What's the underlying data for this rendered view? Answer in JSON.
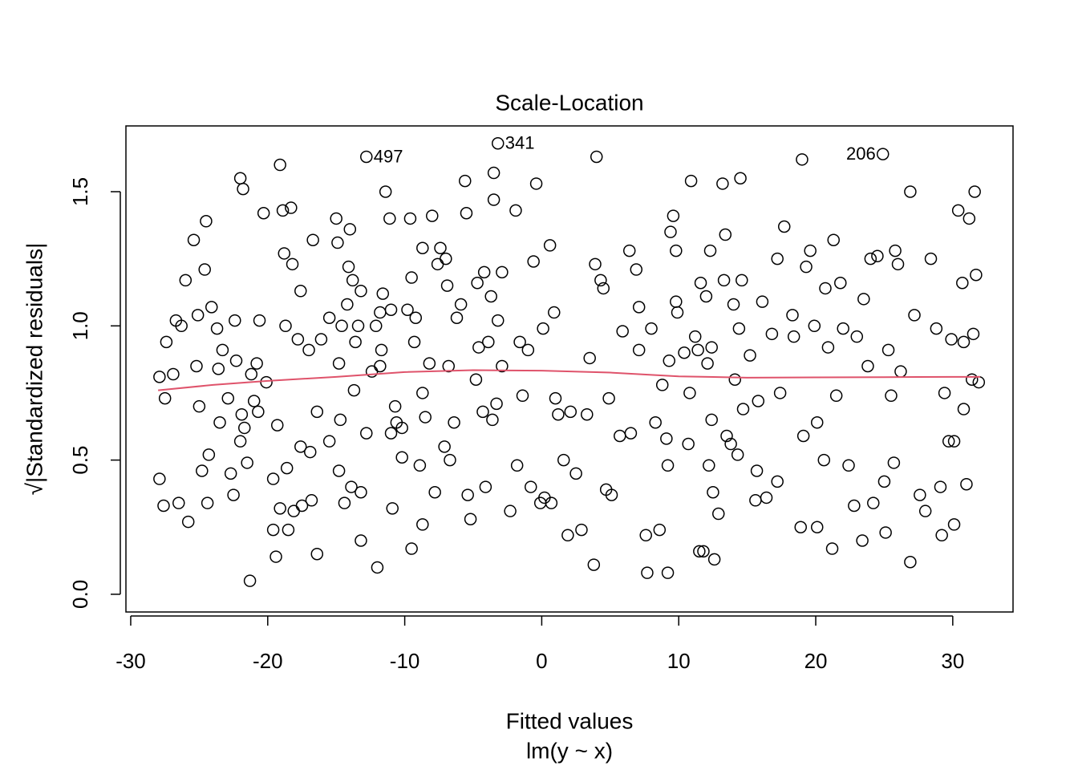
{
  "chart_data": {
    "type": "scatter",
    "title": "Scale-Location",
    "xlabel": "Fitted values",
    "subtitle": "lm(y ~ x)",
    "ylabel": "√|Standardized residuals|",
    "color": "#000000",
    "xlim": [
      -30.35,
      34.4
    ],
    "ylim": [
      -0.066,
      1.745
    ],
    "xticks": [
      -30,
      -20,
      -10,
      0,
      10,
      20,
      30
    ],
    "yticks": [
      {
        "value": 0,
        "label": "0.0"
      },
      0.5,
      {
        "value": 1,
        "label": "1.0"
      },
      1.5
    ],
    "x": [
      -27.9,
      -27.9,
      -27.6,
      -27.5,
      -27.4,
      -26.9,
      -26.7,
      -26.5,
      -26.3,
      -26.0,
      -25.8,
      -25.4,
      -25.2,
      -25.1,
      -25.0,
      -24.8,
      -24.6,
      -24.5,
      -24.4,
      -24.3,
      -24.1,
      -23.7,
      -23.6,
      -23.5,
      -23.3,
      -22.9,
      -22.7,
      -22.5,
      -22.4,
      -22.3,
      -22.0,
      -21.8,
      -22.0,
      -21.9,
      -21.7,
      -21.5,
      -21.3,
      -21.2,
      -21.0,
      -20.8,
      -20.7,
      -20.6,
      -20.3,
      -20.1,
      -19.6,
      -19.6,
      -19.4,
      -19.3,
      -19.1,
      -19.1,
      -18.9,
      -18.8,
      -18.7,
      -18.6,
      -18.5,
      -18.3,
      -18.2,
      -18.1,
      -17.8,
      -17.6,
      -17.6,
      -17.5,
      -17.0,
      -16.9,
      -16.8,
      -16.7,
      -16.4,
      -16.4,
      -16.1,
      -15.5,
      -15.5,
      -15.0,
      -14.9,
      -14.8,
      -14.8,
      -14.7,
      -14.6,
      -14.4,
      -14.2,
      -14.1,
      -14.0,
      -13.9,
      -13.8,
      -13.7,
      -13.6,
      -13.4,
      -13.2,
      -13.2,
      -13.2,
      -12.8,
      -12.8,
      -12.4,
      -12.1,
      -12.0,
      -11.8,
      -11.8,
      -11.7,
      -11.4,
      -11.6,
      -11.1,
      -11.0,
      -11.0,
      -10.9,
      -10.7,
      -10.6,
      -10.2,
      -10.2,
      -9.8,
      -9.6,
      -9.5,
      -9.5,
      -9.3,
      -9.2,
      -8.9,
      -8.7,
      -8.7,
      -8.7,
      -8.5,
      -8.2,
      -8.0,
      -7.8,
      -7.6,
      -7.4,
      -7.1,
      -7.0,
      -6.9,
      -6.8,
      -6.7,
      -6.4,
      -6.2,
      -5.9,
      -5.6,
      -5.5,
      -5.4,
      -5.2,
      -4.8,
      -4.7,
      -4.6,
      -4.3,
      -4.2,
      -4.1,
      -3.9,
      -3.7,
      -3.6,
      -3.5,
      -3.5,
      -3.3,
      -3.2,
      -3.2,
      -2.9,
      -2.9,
      -2.3,
      -1.9,
      -1.8,
      -1.6,
      -1.4,
      -1.0,
      -0.8,
      -0.6,
      -0.4,
      -0.1,
      0.1,
      0.2,
      0.6,
      0.7,
      0.9,
      1.0,
      1.2,
      1.6,
      1.9,
      2.1,
      2.5,
      2.9,
      3.3,
      3.5,
      3.8,
      3.9,
      4.0,
      4.3,
      4.5,
      4.7,
      4.9,
      5.1,
      5.7,
      5.9,
      6.4,
      6.5,
      6.9,
      7.1,
      7.1,
      7.6,
      7.7,
      8.0,
      8.3,
      8.6,
      8.8,
      9.1,
      9.2,
      9.2,
      9.3,
      9.4,
      9.6,
      9.8,
      9.8,
      9.9,
      10.4,
      10.7,
      10.8,
      10.9,
      11.2,
      11.4,
      11.5,
      11.6,
      11.8,
      12.0,
      12.1,
      12.2,
      12.3,
      12.4,
      12.4,
      12.5,
      12.6,
      12.9,
      13.2,
      13.3,
      13.4,
      13.5,
      13.8,
      14.0,
      14.1,
      14.3,
      14.4,
      14.5,
      14.6,
      14.7,
      15.2,
      15.6,
      15.7,
      15.8,
      16.1,
      16.4,
      16.8,
      17.2,
      17.2,
      17.4,
      17.7,
      18.3,
      18.4,
      18.9,
      19.0,
      19.1,
      19.3,
      19.6,
      19.9,
      20.1,
      20.1,
      20.6,
      20.7,
      20.9,
      21.2,
      21.3,
      21.5,
      21.8,
      22.0,
      22.4,
      22.8,
      23.0,
      23.4,
      23.5,
      23.8,
      24.0,
      24.2,
      24.5,
      24.9,
      25.0,
      25.1,
      25.3,
      25.5,
      25.7,
      25.8,
      26.0,
      26.2,
      26.9,
      26.9,
      27.2,
      27.6,
      28.0,
      28.4,
      28.8,
      29.1,
      29.2,
      29.4,
      29.7,
      29.9,
      30.1,
      30.1,
      30.4,
      30.7,
      30.8,
      30.8,
      31.0,
      31.2,
      31.4,
      31.5,
      31.6,
      31.7,
      31.9
    ],
    "values": [
      0.81,
      0.43,
      0.33,
      0.73,
      0.94,
      0.82,
      1.02,
      0.34,
      1.0,
      1.17,
      0.27,
      1.32,
      0.85,
      1.04,
      0.7,
      0.46,
      1.21,
      1.39,
      0.34,
      0.52,
      1.07,
      0.99,
      0.84,
      0.64,
      0.91,
      0.73,
      0.45,
      0.37,
      1.02,
      0.87,
      1.55,
      1.51,
      0.57,
      0.67,
      0.62,
      0.49,
      0.05,
      0.82,
      0.72,
      0.86,
      0.68,
      1.02,
      1.42,
      0.79,
      0.43,
      0.24,
      0.14,
      0.63,
      1.6,
      0.32,
      1.43,
      1.27,
      1.0,
      0.47,
      0.24,
      1.44,
      1.23,
      0.31,
      0.95,
      1.13,
      0.55,
      0.33,
      0.91,
      0.53,
      0.35,
      1.32,
      0.15,
      0.68,
      0.95,
      1.03,
      0.57,
      1.4,
      1.31,
      0.86,
      0.46,
      0.65,
      1.0,
      0.34,
      1.08,
      1.22,
      1.36,
      0.4,
      1.17,
      0.76,
      0.94,
      1.0,
      1.13,
      0.38,
      0.2,
      0.6,
      1.63,
      0.83,
      1.0,
      0.1,
      0.85,
      1.05,
      0.91,
      1.5,
      1.12,
      1.4,
      0.6,
      1.06,
      0.32,
      0.7,
      0.64,
      0.51,
      0.62,
      1.06,
      1.4,
      0.17,
      1.18,
      0.94,
      1.03,
      0.48,
      1.29,
      0.26,
      0.75,
      0.66,
      0.86,
      1.41,
      0.38,
      1.23,
      1.29,
      0.55,
      1.25,
      1.15,
      0.85,
      0.5,
      0.64,
      1.03,
      1.08,
      1.54,
      1.42,
      0.37,
      0.28,
      0.8,
      1.16,
      0.92,
      0.68,
      1.2,
      0.4,
      0.94,
      1.11,
      0.65,
      1.57,
      1.47,
      0.71,
      1.68,
      1.02,
      1.2,
      0.85,
      0.31,
      1.43,
      0.48,
      0.94,
      0.74,
      0.91,
      0.4,
      1.24,
      1.53,
      0.34,
      0.99,
      0.36,
      1.3,
      0.34,
      1.05,
      0.73,
      0.67,
      0.5,
      0.22,
      0.68,
      0.45,
      0.24,
      0.67,
      0.88,
      0.11,
      1.23,
      1.63,
      1.17,
      1.14,
      0.39,
      0.73,
      0.37,
      0.59,
      0.98,
      1.28,
      0.6,
      1.21,
      1.07,
      0.91,
      0.22,
      0.08,
      0.99,
      0.64,
      0.24,
      0.78,
      0.58,
      0.08,
      0.48,
      0.87,
      1.35,
      1.41,
      1.28,
      1.09,
      1.05,
      0.9,
      0.56,
      0.75,
      1.54,
      0.96,
      0.91,
      0.16,
      1.16,
      0.16,
      1.11,
      0.86,
      0.48,
      1.28,
      0.65,
      0.92,
      0.38,
      0.13,
      0.3,
      1.53,
      1.17,
      1.34,
      0.59,
      0.56,
      1.08,
      0.8,
      0.52,
      0.99,
      1.55,
      1.17,
      0.69,
      0.89,
      0.35,
      0.46,
      0.72,
      1.09,
      0.36,
      0.97,
      1.25,
      0.42,
      0.75,
      1.37,
      1.04,
      0.96,
      0.25,
      1.62,
      0.59,
      1.22,
      1.28,
      1.0,
      0.25,
      0.64,
      0.5,
      1.14,
      0.92,
      0.17,
      1.32,
      0.74,
      1.16,
      0.99,
      0.48,
      0.33,
      0.96,
      0.2,
      1.1,
      0.85,
      1.25,
      0.34,
      1.26,
      1.64,
      0.42,
      0.23,
      0.91,
      0.74,
      0.49,
      1.28,
      1.23,
      0.83,
      1.5,
      0.12,
      1.04,
      0.37,
      0.31,
      1.25,
      0.99,
      0.4,
      0.22,
      0.75,
      0.57,
      0.95,
      0.57,
      0.26,
      1.43,
      1.16,
      0.94,
      0.69,
      0.41,
      1.4,
      0.8,
      0.97,
      1.5,
      1.19,
      0.79
    ],
    "smooth": {
      "color": "#df536b",
      "x": [
        -28,
        -24,
        -20,
        -15,
        -10,
        -5,
        0,
        5,
        10,
        15,
        20,
        25,
        30,
        32
      ],
      "values": [
        0.76,
        0.78,
        0.795,
        0.81,
        0.828,
        0.835,
        0.833,
        0.826,
        0.812,
        0.807,
        0.808,
        0.809,
        0.81,
        0.81
      ]
    },
    "annotations": [
      {
        "text": "497",
        "x": -12.8,
        "y": 1.63
      },
      {
        "text": "341",
        "x": -3.2,
        "y": 1.68
      },
      {
        "text": "206",
        "x": 24.9,
        "y": 1.64
      }
    ]
  }
}
